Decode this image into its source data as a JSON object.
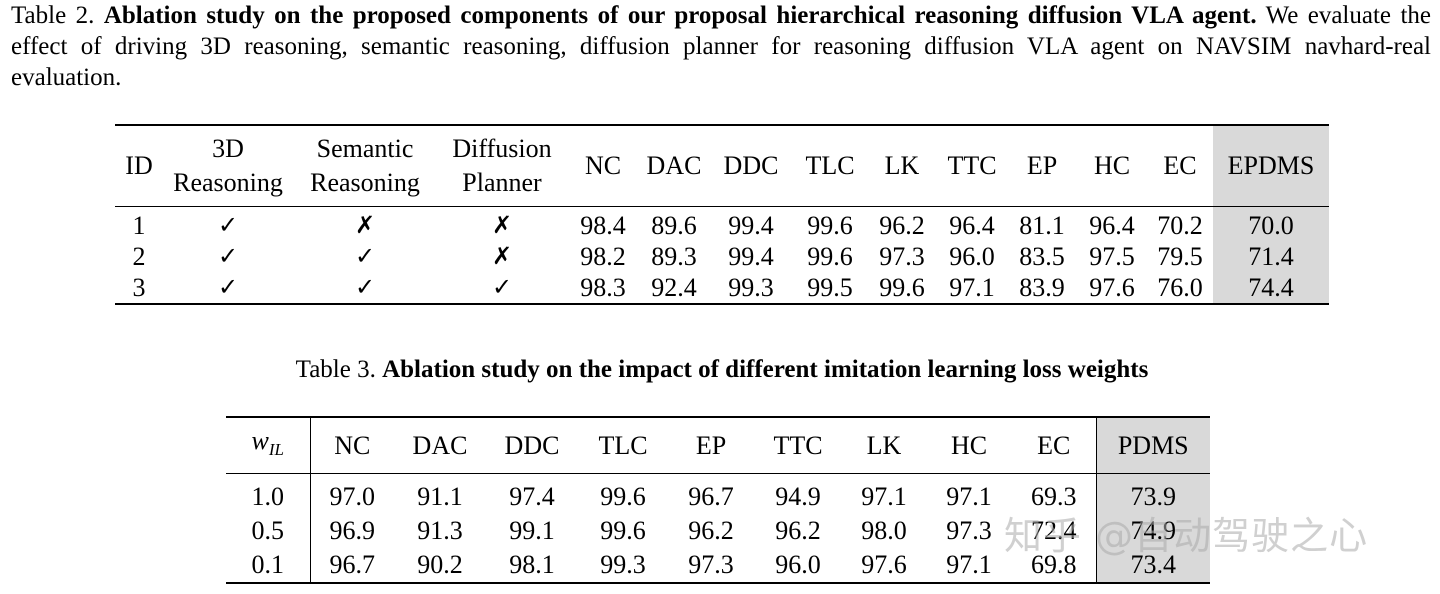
{
  "table2": {
    "caption_prefix": "Table 2.",
    "caption_bold": "Ablation study on the proposed components of our proposal hierarchical reasoning diffusion VLA agent.",
    "caption_rest": "We evaluate the effect of driving 3D reasoning, semantic reasoning, diffusion planner for reasoning diffusion VLA agent on NAVSIM navhard-real evaluation.",
    "headers": {
      "id": "ID",
      "reasoning3d_1": "3D",
      "reasoning3d_2": "Reasoning",
      "semantic_1": "Semantic",
      "semantic_2": "Reasoning",
      "diffusion_1": "Diffusion",
      "diffusion_2": "Planner",
      "metrics": [
        "NC",
        "DAC",
        "DDC",
        "TLC",
        "LK",
        "TTC",
        "EP",
        "HC",
        "EC"
      ],
      "score": "EPDMS"
    },
    "rows": [
      {
        "id": "1",
        "r3d": "✓",
        "sem": "✗",
        "diff": "✗",
        "vals": [
          "98.4",
          "89.6",
          "99.4",
          "99.6",
          "96.2",
          "96.4",
          "81.1",
          "96.4",
          "70.2"
        ],
        "score": "70.0"
      },
      {
        "id": "2",
        "r3d": "✓",
        "sem": "✓",
        "diff": "✗",
        "vals": [
          "98.2",
          "89.3",
          "99.4",
          "99.6",
          "97.3",
          "96.0",
          "83.5",
          "97.5",
          "79.5"
        ],
        "score": "71.4"
      },
      {
        "id": "3",
        "r3d": "✓",
        "sem": "✓",
        "diff": "✓",
        "vals": [
          "98.3",
          "92.4",
          "99.3",
          "99.5",
          "99.6",
          "97.1",
          "83.9",
          "97.6",
          "76.0"
        ],
        "score": "74.4"
      }
    ]
  },
  "table3": {
    "caption_prefix": "Table 3.",
    "caption_bold": "Ablation study on the impact of different imitation learning loss weights",
    "headers": {
      "weight_symbol": "w",
      "weight_subscript": "IL",
      "metrics": [
        "NC",
        "DAC",
        "DDC",
        "TLC",
        "EP",
        "TTC",
        "LK",
        "HC",
        "EC"
      ],
      "score": "PDMS"
    },
    "rows": [
      {
        "w": "1.0",
        "vals": [
          "97.0",
          "91.1",
          "97.4",
          "99.6",
          "96.7",
          "94.9",
          "97.1",
          "97.1",
          "69.3"
        ],
        "score": "73.9"
      },
      {
        "w": "0.5",
        "vals": [
          "96.9",
          "91.3",
          "99.1",
          "99.6",
          "96.2",
          "96.2",
          "98.0",
          "97.3",
          "72.4"
        ],
        "score": "74.9"
      },
      {
        "w": "0.1",
        "vals": [
          "96.7",
          "90.2",
          "98.1",
          "99.3",
          "97.3",
          "96.0",
          "97.6",
          "97.1",
          "69.8"
        ],
        "score": "73.4"
      }
    ]
  },
  "watermark": "知乎 @自动驾驶之心"
}
